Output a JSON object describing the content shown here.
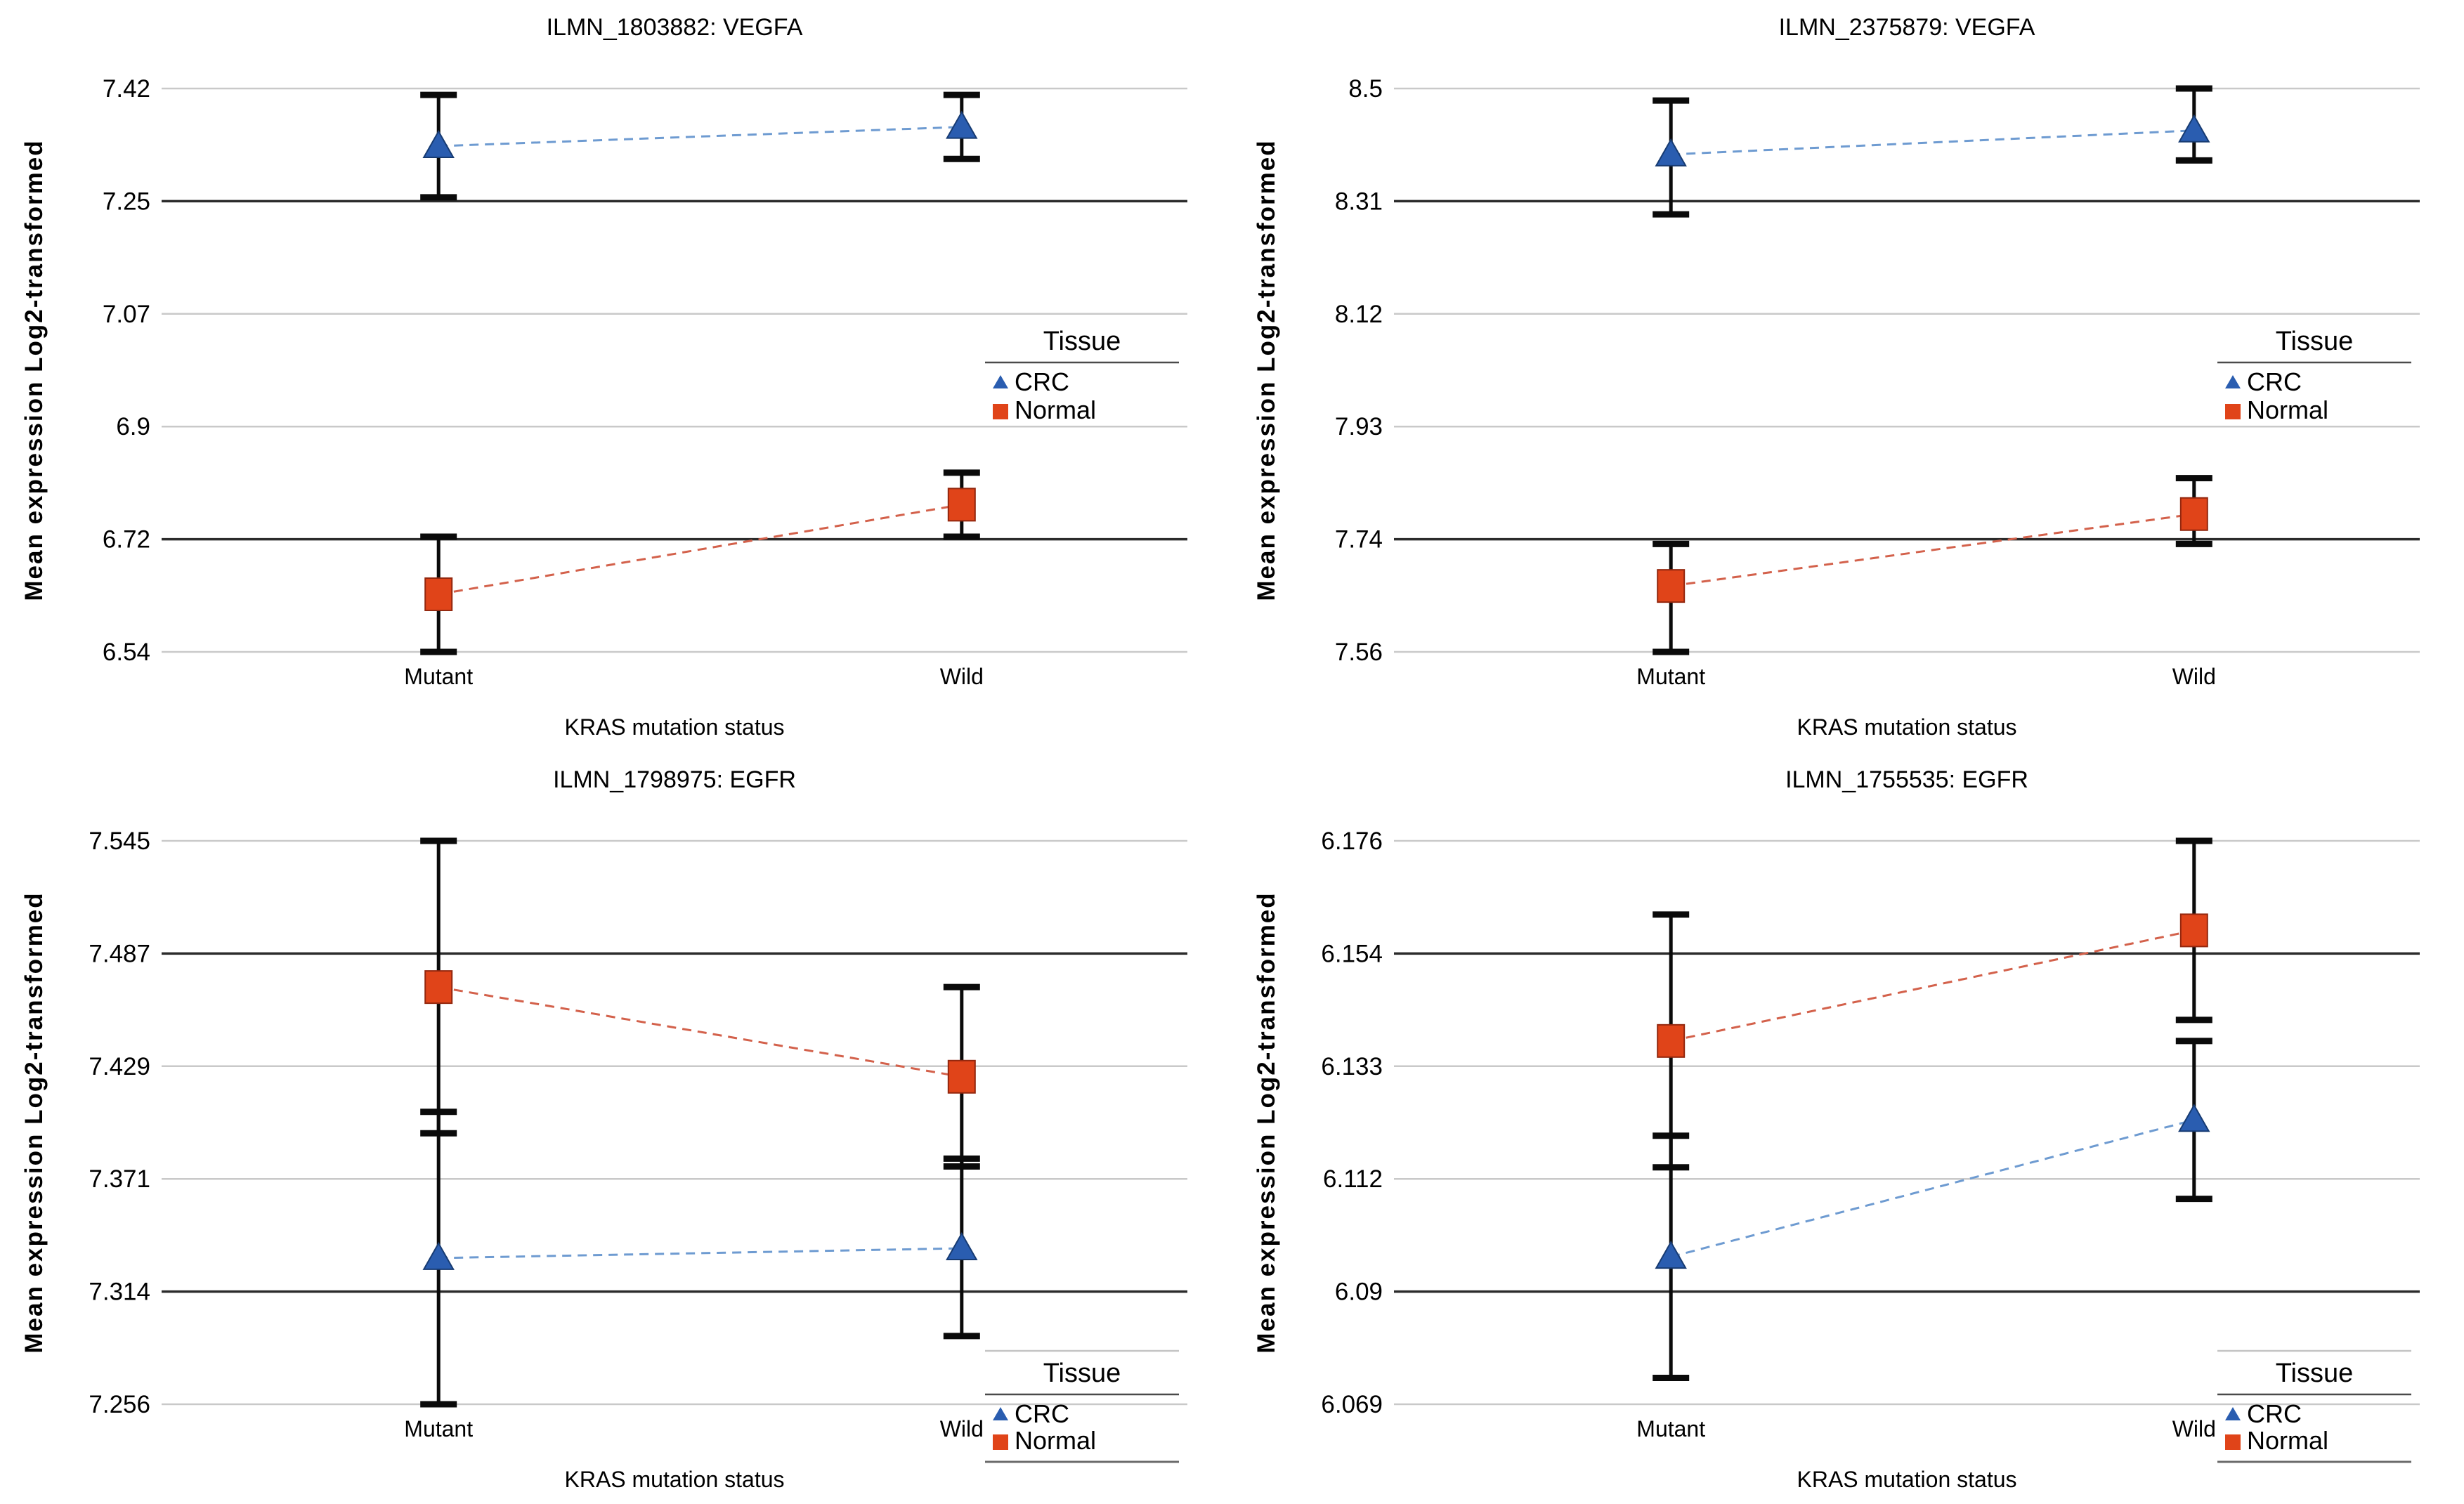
{
  "figure": {
    "x_axis_title": "KRAS mutation status",
    "y_axis_title": "Mean expression Log2-transformed",
    "categories": [
      "Mutant",
      "Wild"
    ],
    "legend": {
      "title": "Tissue",
      "items": [
        {
          "label": "CRC",
          "marker": "triangle-icon",
          "color": "#2a5db0"
        },
        {
          "label": "Normal",
          "marker": "square-icon",
          "color": "#e04419"
        }
      ]
    }
  },
  "colors": {
    "crc_marker": "#2a5db0",
    "crc_marker_edge": "#173b72",
    "crc_line": "#6e9bd1",
    "normal_marker": "#e04419",
    "normal_marker_edge": "#93270e",
    "normal_line": "#d3614b",
    "gridline_light": "#c9c9c9",
    "gridline_dark": "#2b2b2b",
    "error_bar": "#0a0a0a",
    "background": "#ffffff"
  },
  "chart_data": [
    {
      "type": "line",
      "probe": "ILMN_1803882",
      "gene": "VEGFA",
      "title": "ILMN_1803882: VEGFA",
      "xlabel": "KRAS mutation status",
      "ylabel": "Mean expression Log2-transformed",
      "x": [
        "Mutant",
        "Wild"
      ],
      "ytick_labels": [
        "7.42",
        "7.25",
        "7.07",
        "6.9",
        "6.72",
        "6.54"
      ],
      "ytick_values": [
        7.42,
        7.25,
        7.07,
        6.9,
        6.72,
        6.54
      ],
      "ylim": [
        6.54,
        7.42
      ],
      "dark_gridline_indices": [
        1,
        4
      ],
      "grid": true,
      "legend_position": "middle-right",
      "series": [
        {
          "name": "CRC",
          "marker": "triangle",
          "points": [
            {
              "category": "Mutant",
              "mean": 7.33,
              "ci_low": 7.25,
              "ci_high": 7.41
            },
            {
              "category": "Wild",
              "mean": 7.36,
              "ci_low": 7.31,
              "ci_high": 7.41
            }
          ]
        },
        {
          "name": "Normal",
          "marker": "square",
          "points": [
            {
              "category": "Mutant",
              "mean": 6.63,
              "ci_low": 6.54,
              "ci_high": 6.72
            },
            {
              "category": "Wild",
              "mean": 6.77,
              "ci_low": 6.72,
              "ci_high": 6.82
            }
          ]
        }
      ]
    },
    {
      "type": "line",
      "probe": "ILMN_2375879",
      "gene": "VEGFA",
      "title": "ILMN_2375879: VEGFA",
      "xlabel": "KRAS mutation status",
      "ylabel": "Mean expression Log2-transformed",
      "x": [
        "Mutant",
        "Wild"
      ],
      "ytick_labels": [
        "8.5",
        "8.31",
        "8.12",
        "7.93",
        "7.74",
        "7.56"
      ],
      "ytick_values": [
        8.5,
        8.31,
        8.12,
        7.93,
        7.74,
        7.56
      ],
      "ylim": [
        7.56,
        8.5
      ],
      "dark_gridline_indices": [
        1,
        4
      ],
      "grid": true,
      "legend_position": "middle-right",
      "series": [
        {
          "name": "CRC",
          "marker": "triangle",
          "points": [
            {
              "category": "Mutant",
              "mean": 8.39,
              "ci_low": 8.29,
              "ci_high": 8.48
            },
            {
              "category": "Wild",
              "mean": 8.43,
              "ci_low": 8.38,
              "ci_high": 8.5
            }
          ]
        },
        {
          "name": "Normal",
          "marker": "square",
          "points": [
            {
              "category": "Mutant",
              "mean": 7.67,
              "ci_low": 7.56,
              "ci_high": 7.74
            },
            {
              "category": "Wild",
              "mean": 7.79,
              "ci_low": 7.74,
              "ci_high": 7.85
            }
          ]
        }
      ]
    },
    {
      "type": "line",
      "probe": "ILMN_1798975",
      "gene": "EGFR",
      "title": "ILMN_1798975: EGFR",
      "xlabel": "KRAS mutation status",
      "ylabel": "Mean expression Log2-transformed",
      "x": [
        "Mutant",
        "Wild"
      ],
      "ytick_labels": [
        "7.545",
        "7.487",
        "7.429",
        "7.371",
        "7.314",
        "7.256"
      ],
      "ytick_values": [
        7.545,
        7.487,
        7.429,
        7.371,
        7.314,
        7.256
      ],
      "ylim": [
        7.256,
        7.545
      ],
      "dark_gridline_indices": [
        1,
        4
      ],
      "grid": true,
      "legend_position": "bottom-right",
      "series": [
        {
          "name": "CRC",
          "marker": "triangle",
          "points": [
            {
              "category": "Mutant",
              "mean": 7.331,
              "ci_low": 7.256,
              "ci_high": 7.406
            },
            {
              "category": "Wild",
              "mean": 7.336,
              "ci_low": 7.291,
              "ci_high": 7.382
            }
          ]
        },
        {
          "name": "Normal",
          "marker": "square",
          "points": [
            {
              "category": "Mutant",
              "mean": 7.47,
              "ci_low": 7.395,
              "ci_high": 7.545
            },
            {
              "category": "Wild",
              "mean": 7.424,
              "ci_low": 7.378,
              "ci_high": 7.47
            }
          ]
        }
      ]
    },
    {
      "type": "line",
      "probe": "ILMN_1755535",
      "gene": "EGFR",
      "title": "ILMN_1755535: EGFR",
      "xlabel": "KRAS mutation status",
      "ylabel": "Mean expression Log2-transformed",
      "x": [
        "Mutant",
        "Wild"
      ],
      "ytick_labels": [
        "6.176",
        "6.154",
        "6.133",
        "6.112",
        "6.09",
        "6.069"
      ],
      "ytick_values": [
        6.176,
        6.154,
        6.133,
        6.112,
        6.09,
        6.069
      ],
      "ylim": [
        6.069,
        6.176
      ],
      "dark_gridline_indices": [
        1,
        4
      ],
      "grid": true,
      "legend_position": "bottom-right",
      "series": [
        {
          "name": "CRC",
          "marker": "triangle",
          "points": [
            {
              "category": "Mutant",
              "mean": 6.097,
              "ci_low": 6.074,
              "ci_high": 6.12
            },
            {
              "category": "Wild",
              "mean": 6.123,
              "ci_low": 6.108,
              "ci_high": 6.138
            }
          ]
        },
        {
          "name": "Normal",
          "marker": "square",
          "points": [
            {
              "category": "Mutant",
              "mean": 6.138,
              "ci_low": 6.114,
              "ci_high": 6.162
            },
            {
              "category": "Wild",
              "mean": 6.159,
              "ci_low": 6.142,
              "ci_high": 6.176
            }
          ]
        }
      ]
    }
  ]
}
